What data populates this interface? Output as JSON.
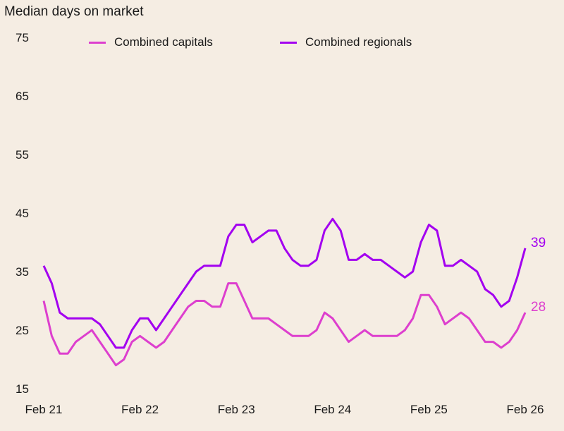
{
  "chart_data": {
    "type": "line",
    "title": "Median days on market",
    "xlabel": "",
    "ylabel": "",
    "ylim": [
      15,
      75
    ],
    "yticks": [
      "75",
      "65",
      "55",
      "45",
      "35",
      "25",
      "15"
    ],
    "xtick_labels": [
      "Feb 21",
      "Feb 22",
      "Feb 23",
      "Feb 24",
      "Feb 25",
      "Feb 26"
    ],
    "x_range": [
      "Feb 2021",
      "Feb 2026"
    ],
    "x_frequency": "monthly",
    "grid": false,
    "legend_position": "top",
    "series": [
      {
        "name": "Combined capitals",
        "color": "#dd3fce",
        "end_label": "28",
        "values": [
          30,
          24,
          21,
          21,
          23,
          24,
          25,
          23,
          21,
          19,
          20,
          23,
          24,
          23,
          22,
          23,
          25,
          27,
          29,
          30,
          30,
          29,
          29,
          33,
          33,
          30,
          27,
          27,
          27,
          26,
          25,
          24,
          24,
          24,
          25,
          28,
          27,
          25,
          23,
          24,
          25,
          24,
          24,
          24,
          24,
          25,
          27,
          31,
          31,
          29,
          26,
          27,
          28,
          27,
          25,
          23,
          23,
          22,
          23,
          25,
          28
        ]
      },
      {
        "name": "Combined regionals",
        "color": "#a300f0",
        "end_label": "39",
        "values": [
          36,
          33,
          28,
          27,
          27,
          27,
          27,
          26,
          24,
          22,
          22,
          25,
          27,
          27,
          25,
          27,
          29,
          31,
          33,
          35,
          36,
          36,
          36,
          41,
          43,
          43,
          40,
          41,
          42,
          42,
          39,
          37,
          36,
          36,
          37,
          42,
          44,
          42,
          37,
          37,
          38,
          37,
          37,
          36,
          35,
          34,
          35,
          40,
          43,
          42,
          36,
          36,
          37,
          36,
          35,
          32,
          31,
          29,
          30,
          34,
          39
        ]
      }
    ]
  }
}
